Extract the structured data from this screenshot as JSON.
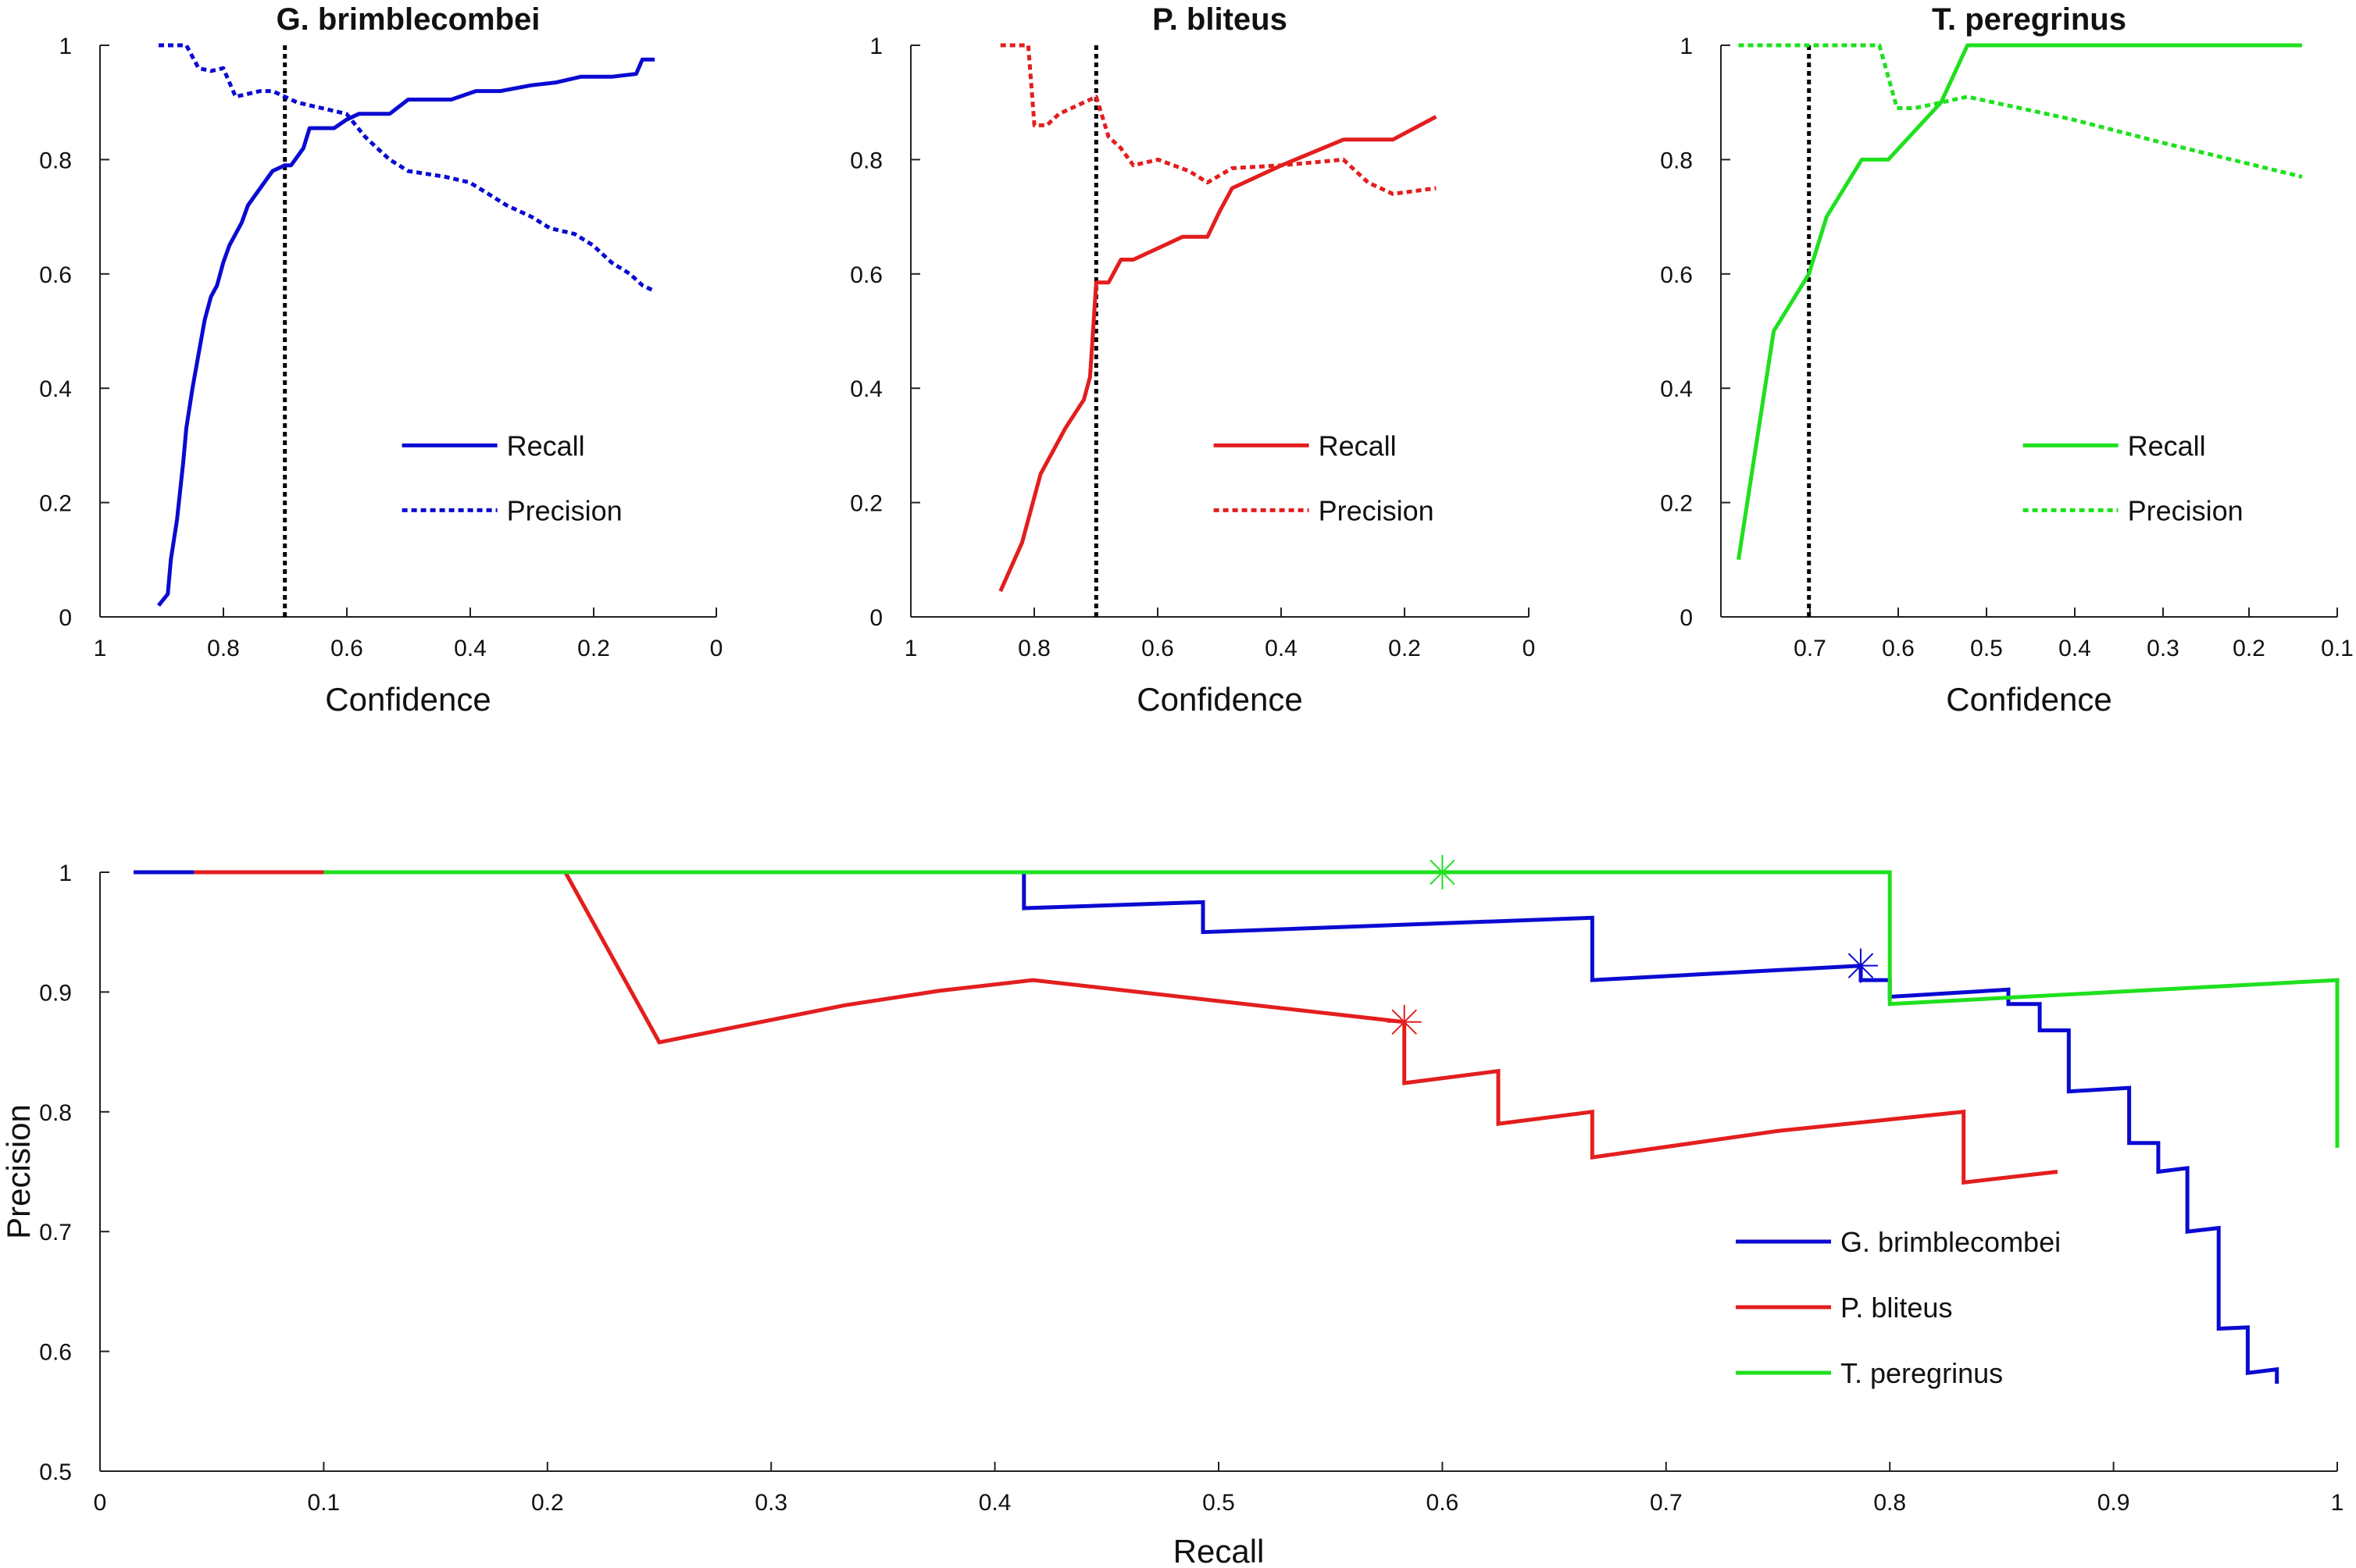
{
  "chart_data": [
    {
      "type": "line",
      "title": "G. brimblecombei",
      "xlabel": "Confidence",
      "ylabel": "",
      "xlim": [
        1,
        0
      ],
      "ylim": [
        0,
        1
      ],
      "xticks": [
        "1",
        "0.8",
        "0.6",
        "0.4",
        "0.2",
        "0"
      ],
      "yticks": [
        "0",
        "0.2",
        "0.4",
        "0.6",
        "0.8",
        "1"
      ],
      "threshold": 0.7,
      "colors": {
        "line": "#0a0ad2",
        "threshold": "#000000"
      },
      "legend_position": "center-right",
      "series": [
        {
          "name": "Recall",
          "style": "solid",
          "x": [
            0.905,
            0.89,
            0.885,
            0.875,
            0.865,
            0.86,
            0.85,
            0.84,
            0.83,
            0.82,
            0.81,
            0.8,
            0.79,
            0.78,
            0.77,
            0.76,
            0.74,
            0.72,
            0.7,
            0.69,
            0.67,
            0.66,
            0.64,
            0.62,
            0.6,
            0.58,
            0.56,
            0.53,
            0.5,
            0.47,
            0.43,
            0.39,
            0.35,
            0.3,
            0.26,
            0.22,
            0.17,
            0.13,
            0.12,
            0.1
          ],
          "y": [
            0.02,
            0.04,
            0.1,
            0.17,
            0.27,
            0.33,
            0.4,
            0.46,
            0.52,
            0.56,
            0.58,
            0.62,
            0.65,
            0.67,
            0.69,
            0.72,
            0.75,
            0.78,
            0.79,
            0.79,
            0.82,
            0.855,
            0.855,
            0.855,
            0.87,
            0.88,
            0.88,
            0.88,
            0.905,
            0.905,
            0.905,
            0.92,
            0.92,
            0.93,
            0.935,
            0.945,
            0.945,
            0.95,
            0.975,
            0.975
          ]
        },
        {
          "name": "Precision",
          "style": "dotted",
          "x": [
            0.905,
            0.86,
            0.84,
            0.82,
            0.8,
            0.78,
            0.76,
            0.74,
            0.72,
            0.7,
            0.68,
            0.66,
            0.64,
            0.6,
            0.57,
            0.55,
            0.53,
            0.5,
            0.47,
            0.44,
            0.4,
            0.37,
            0.34,
            0.3,
            0.27,
            0.23,
            0.2,
            0.17,
            0.14,
            0.12,
            0.1
          ],
          "y": [
            1.0,
            1.0,
            0.96,
            0.955,
            0.96,
            0.91,
            0.915,
            0.92,
            0.92,
            0.91,
            0.9,
            0.895,
            0.89,
            0.88,
            0.84,
            0.82,
            0.8,
            0.78,
            0.775,
            0.77,
            0.76,
            0.74,
            0.72,
            0.7,
            0.68,
            0.67,
            0.65,
            0.62,
            0.6,
            0.58,
            0.57
          ]
        }
      ]
    },
    {
      "type": "line",
      "title": "P. bliteus",
      "xlabel": "Confidence",
      "ylabel": "",
      "xlim": [
        1,
        0
      ],
      "ylim": [
        0,
        1
      ],
      "xticks": [
        "1",
        "0.8",
        "0.6",
        "0.4",
        "0.2",
        "0"
      ],
      "yticks": [
        "0",
        "0.2",
        "0.4",
        "0.6",
        "0.8",
        "1"
      ],
      "threshold": 0.7,
      "colors": {
        "line": "#e31e1e",
        "threshold": "#000000"
      },
      "legend_position": "center-right",
      "series": [
        {
          "name": "Recall",
          "style": "solid",
          "x": [
            0.855,
            0.82,
            0.79,
            0.75,
            0.72,
            0.71,
            0.7,
            0.68,
            0.66,
            0.64,
            0.6,
            0.56,
            0.52,
            0.5,
            0.48,
            0.4,
            0.3,
            0.22,
            0.15
          ],
          "y": [
            0.045,
            0.13,
            0.25,
            0.33,
            0.38,
            0.42,
            0.585,
            0.585,
            0.625,
            0.625,
            0.645,
            0.665,
            0.665,
            0.71,
            0.75,
            0.79,
            0.835,
            0.835,
            0.875
          ]
        },
        {
          "name": "Precision",
          "style": "dotted",
          "x": [
            0.855,
            0.81,
            0.8,
            0.78,
            0.76,
            0.72,
            0.7,
            0.68,
            0.66,
            0.64,
            0.6,
            0.55,
            0.52,
            0.48,
            0.4,
            0.3,
            0.26,
            0.22,
            0.15
          ],
          "y": [
            1.0,
            1.0,
            0.86,
            0.86,
            0.88,
            0.9,
            0.91,
            0.84,
            0.82,
            0.79,
            0.8,
            0.78,
            0.76,
            0.785,
            0.79,
            0.8,
            0.76,
            0.74,
            0.75
          ]
        }
      ]
    },
    {
      "type": "line",
      "title": "T. peregrinus",
      "xlabel": "Confidence",
      "ylabel": "",
      "xlim": [
        0.8,
        0.1
      ],
      "ylim": [
        0,
        1
      ],
      "xticks": [
        "0.7",
        "0.6",
        "0.5",
        "0.4",
        "0.3",
        "0.2",
        "0.1"
      ],
      "yticks": [
        "0",
        "0.2",
        "0.4",
        "0.6",
        "0.8",
        "1"
      ],
      "threshold": 0.7,
      "colors": {
        "line": "#1fe01f",
        "threshold": "#000000"
      },
      "legend_position": "center-right",
      "series": [
        {
          "name": "Recall",
          "style": "solid",
          "x": [
            0.78,
            0.74,
            0.7,
            0.68,
            0.64,
            0.61,
            0.55,
            0.52,
            0.5,
            0.4,
            0.3,
            0.14
          ],
          "y": [
            0.1,
            0.5,
            0.6,
            0.7,
            0.8,
            0.8,
            0.9,
            1.0,
            1.0,
            1.0,
            1.0,
            1.0
          ]
        },
        {
          "name": "Precision",
          "style": "dotted",
          "x": [
            0.78,
            0.62,
            0.6,
            0.58,
            0.55,
            0.52,
            0.4,
            0.3,
            0.14
          ],
          "y": [
            1.0,
            1.0,
            0.89,
            0.89,
            0.9,
            0.91,
            0.87,
            0.83,
            0.77
          ]
        }
      ]
    },
    {
      "type": "line",
      "title": "",
      "xlabel": "Recall",
      "ylabel": "Precision",
      "xlim": [
        0,
        1
      ],
      "ylim": [
        0.5,
        1
      ],
      "xticks": [
        "0",
        "0.1",
        "0.2",
        "0.3",
        "0.4",
        "0.5",
        "0.6",
        "0.7",
        "0.8",
        "0.9",
        "1"
      ],
      "yticks": [
        "0.5",
        "0.6",
        "0.7",
        "0.8",
        "0.9",
        "1"
      ],
      "legend_position": "bottom-right",
      "series": [
        {
          "name": "G. brimblecombei",
          "color": "#0a0ad2",
          "x": [
            0.015,
            0.04,
            0.1,
            0.2,
            0.3,
            0.413,
            0.413,
            0.493,
            0.493,
            0.667,
            0.667,
            0.787,
            0.787,
            0.8,
            0.8,
            0.853,
            0.853,
            0.867,
            0.867,
            0.88,
            0.88,
            0.907,
            0.907,
            0.92,
            0.92,
            0.933,
            0.933,
            0.947,
            0.947,
            0.96,
            0.96,
            0.973,
            0.973
          ],
          "y": [
            1.0,
            1.0,
            1.0,
            1.0,
            1.0,
            1.0,
            0.97,
            0.975,
            0.95,
            0.962,
            0.91,
            0.922,
            0.91,
            0.91,
            0.896,
            0.902,
            0.89,
            0.89,
            0.868,
            0.868,
            0.817,
            0.82,
            0.774,
            0.774,
            0.75,
            0.753,
            0.7,
            0.703,
            0.619,
            0.62,
            0.582,
            0.585,
            0.573
          ],
          "marker": {
            "x": 0.787,
            "y": 0.922
          }
        },
        {
          "name": "P. bliteus",
          "color": "#e31e1e",
          "x": [
            0.042,
            0.1,
            0.208,
            0.25,
            0.333,
            0.375,
            0.417,
            0.583,
            0.583,
            0.625,
            0.625,
            0.667,
            0.667,
            0.75,
            0.833,
            0.833,
            0.875
          ],
          "y": [
            1.0,
            1.0,
            1.0,
            0.858,
            0.889,
            0.901,
            0.91,
            0.875,
            0.824,
            0.834,
            0.79,
            0.8,
            0.762,
            0.784,
            0.8,
            0.741,
            0.75
          ],
          "marker": {
            "x": 0.583,
            "y": 0.875
          }
        },
        {
          "name": "T. peregrinus",
          "color": "#1fe01f",
          "x": [
            0.1,
            0.2,
            0.4,
            0.6,
            0.8,
            0.8,
            0.9,
            1.0,
            1.0
          ],
          "y": [
            1.0,
            1.0,
            1.0,
            1.0,
            1.0,
            0.89,
            0.9,
            0.91,
            0.77
          ],
          "marker": {
            "x": 0.6,
            "y": 1.0
          }
        }
      ]
    }
  ]
}
